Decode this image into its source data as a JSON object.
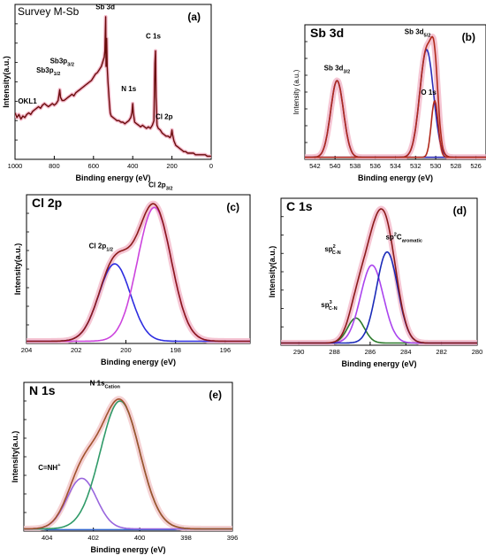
{
  "chart_data": [
    {
      "id": "a",
      "type": "line",
      "panel_letter": "(a)",
      "title": "Survey M-Sb",
      "xlabel": "Binding energy (eV)",
      "ylabel": "Intensity(a.u.)",
      "xlim": [
        1000,
        0
      ],
      "xticks": [
        1000,
        800,
        600,
        400,
        200,
        0
      ],
      "xtick_labels": [
        "1000",
        "800",
        "600",
        "400",
        "200",
        "0"
      ],
      "ylim": [
        0,
        1
      ],
      "show_y_ticklabels": false,
      "series": [
        {
          "color": "#6b0c0c",
          "envelope_color": "#f2b6c8",
          "points": [
            [
              1000,
              0.3
            ],
            [
              990,
              0.27
            ],
            [
              980,
              0.29
            ],
            [
              970,
              0.26
            ],
            [
              960,
              0.28
            ],
            [
              950,
              0.27
            ],
            [
              940,
              0.29
            ],
            [
              930,
              0.3
            ],
            [
              920,
              0.29
            ],
            [
              910,
              0.31
            ],
            [
              900,
              0.32
            ],
            [
              890,
              0.33
            ],
            [
              880,
              0.34
            ],
            [
              870,
              0.33
            ],
            [
              860,
              0.35
            ],
            [
              850,
              0.36
            ],
            [
              840,
              0.35
            ],
            [
              830,
              0.34
            ],
            [
              820,
              0.35
            ],
            [
              810,
              0.36
            ],
            [
              800,
              0.35
            ],
            [
              790,
              0.36
            ],
            [
              780,
              0.38
            ],
            [
              772,
              0.45
            ],
            [
              768,
              0.4
            ],
            [
              760,
              0.38
            ],
            [
              750,
              0.38
            ],
            [
              740,
              0.39
            ],
            [
              730,
              0.4
            ],
            [
              720,
              0.41
            ],
            [
              710,
              0.42
            ],
            [
              700,
              0.41
            ],
            [
              690,
              0.43
            ],
            [
              680,
              0.44
            ],
            [
              670,
              0.45
            ],
            [
              660,
              0.46
            ],
            [
              650,
              0.47
            ],
            [
              640,
              0.48
            ],
            [
              630,
              0.49
            ],
            [
              620,
              0.5
            ],
            [
              610,
              0.51
            ],
            [
              600,
              0.53
            ],
            [
              590,
              0.55
            ],
            [
              580,
              0.56
            ],
            [
              570,
              0.58
            ],
            [
              560,
              0.6
            ],
            [
              550,
              0.64
            ],
            [
              545,
              0.66
            ],
            [
              542,
              0.7
            ],
            [
              538,
              0.92
            ],
            [
              536,
              0.6
            ],
            [
              533,
              0.78
            ],
            [
              530,
              0.6
            ],
            [
              526,
              0.5
            ],
            [
              520,
              0.38
            ],
            [
              515,
              0.3
            ],
            [
              510,
              0.28
            ],
            [
              500,
              0.27
            ],
            [
              490,
              0.26
            ],
            [
              480,
              0.25
            ],
            [
              470,
              0.25
            ],
            [
              460,
              0.24
            ],
            [
              450,
              0.24
            ],
            [
              440,
              0.23
            ],
            [
              430,
              0.24
            ],
            [
              420,
              0.25
            ],
            [
              410,
              0.27
            ],
            [
              404,
              0.3
            ],
            [
              400,
              0.36
            ],
            [
              397,
              0.3
            ],
            [
              390,
              0.24
            ],
            [
              380,
              0.23
            ],
            [
              370,
              0.22
            ],
            [
              360,
              0.21
            ],
            [
              350,
              0.22
            ],
            [
              340,
              0.21
            ],
            [
              330,
              0.2
            ],
            [
              320,
              0.21
            ],
            [
              310,
              0.2
            ],
            [
              300,
              0.22
            ],
            [
              292,
              0.25
            ],
            [
              287,
              0.62
            ],
            [
              284,
              0.7
            ],
            [
              281,
              0.4
            ],
            [
              276,
              0.22
            ],
            [
              270,
              0.2
            ],
            [
              260,
              0.19
            ],
            [
              250,
              0.17
            ],
            [
              240,
              0.16
            ],
            [
              230,
              0.15
            ],
            [
              220,
              0.15
            ],
            [
              210,
              0.14
            ],
            [
              205,
              0.15
            ],
            [
              200,
              0.19
            ],
            [
              197,
              0.16
            ],
            [
              190,
              0.12
            ],
            [
              180,
              0.09
            ],
            [
              170,
              0.08
            ],
            [
              160,
              0.07
            ],
            [
              150,
              0.06
            ],
            [
              140,
              0.05
            ],
            [
              130,
              0.05
            ],
            [
              120,
              0.04
            ],
            [
              110,
              0.04
            ],
            [
              100,
              0.04
            ],
            [
              90,
              0.04
            ],
            [
              80,
              0.03
            ],
            [
              70,
              0.03
            ],
            [
              60,
              0.03
            ],
            [
              50,
              0.03
            ],
            [
              40,
              0.03
            ],
            [
              30,
              0.03
            ],
            [
              20,
              0.02
            ],
            [
              10,
              0.02
            ],
            [
              0,
              0.02
            ]
          ]
        }
      ],
      "annotations": [
        {
          "text": "OKL1",
          "x": 985,
          "y": 0.36
        },
        {
          "text": "Sb3p",
          "sub": "1/2",
          "x": 830,
          "y": 0.56
        },
        {
          "text": "Sb3p",
          "sub": "3/2",
          "x": 760,
          "y": 0.62
        },
        {
          "text": "Sb 3d",
          "x": 540,
          "y": 0.97
        },
        {
          "text": "N 1s",
          "x": 420,
          "y": 0.44
        },
        {
          "text": "C 1s",
          "x": 295,
          "y": 0.78
        },
        {
          "text": "Cl 2p",
          "x": 240,
          "y": 0.26
        }
      ]
    },
    {
      "id": "b",
      "type": "line",
      "panel_letter": "(b)",
      "title": "Sb 3d",
      "xlabel": "Binding energy (eV)",
      "ylabel": "Intensity (a.u.)",
      "xlim": [
        543,
        525
      ],
      "xticks": [
        542,
        540,
        538,
        536,
        534,
        532,
        530,
        528,
        526
      ],
      "xtick_labels": [
        "542",
        "540",
        "538",
        "536",
        "534",
        "532",
        "530",
        "528",
        "526"
      ],
      "ylim": [
        0,
        1
      ],
      "show_y_ticklabels": false,
      "components": [
        {
          "color": "#2d2db8",
          "center": 539.8,
          "fwhm": 1.5,
          "height": 0.57
        },
        {
          "color": "#2d2db8",
          "center": 530.9,
          "fwhm": 1.6,
          "height": 0.8
        },
        {
          "color": "#b02a1c",
          "center": 530.1,
          "fwhm": 0.8,
          "height": 0.42
        }
      ],
      "envelope": {
        "color": "#b02a1c",
        "glow": "#f2b6c8"
      },
      "annotations": [
        {
          "text": "Sb 3d",
          "sub": "3/2",
          "x": 539.8,
          "y": 0.66
        },
        {
          "text": "Sb 3d",
          "sub": "5/2",
          "x": 531.8,
          "y": 0.93
        },
        {
          "text": "O 1s",
          "x": 530.7,
          "y": 0.48
        }
      ]
    },
    {
      "id": "c",
      "type": "line",
      "panel_letter": "(c)",
      "title": "Cl 2p",
      "xlabel": "Binding energy (eV)",
      "ylabel": "Intensity(a.u.)",
      "xlim": [
        204,
        195
      ],
      "xticks": [
        204,
        202,
        200,
        198,
        196
      ],
      "xtick_labels": [
        "204",
        "202",
        "200",
        "198",
        "196"
      ],
      "ylim": [
        0,
        1
      ],
      "show_y_ticklabels": false,
      "components": [
        {
          "color": "#2d2de0",
          "center": 200.45,
          "fwhm": 1.5,
          "height": 0.52
        },
        {
          "color": "#cc44dd",
          "center": 198.85,
          "fwhm": 1.6,
          "height": 0.9
        }
      ],
      "envelope": {
        "color": "#8b1a1a",
        "glow": "#f2b6c8"
      },
      "annotations": [
        {
          "text": "Cl 2p",
          "sub": "3/2",
          "x": 198.6,
          "y": 1.05
        },
        {
          "text": "Cl 2p",
          "sub": "1/2",
          "x": 201.0,
          "y": 0.64
        }
      ]
    },
    {
      "id": "d",
      "type": "line",
      "panel_letter": "(d)",
      "title": "C 1s",
      "xlabel": "Binding energy (eV)",
      "ylabel": "Intensity(a.u.)",
      "xlim": [
        291,
        280
      ],
      "xticks": [
        290,
        288,
        286,
        284,
        282,
        280
      ],
      "xtick_labels": [
        "290",
        "288",
        "286",
        "284",
        "282",
        "280"
      ],
      "ylim": [
        0,
        1
      ],
      "show_y_ticklabels": false,
      "components": [
        {
          "color": "#2a7a2a",
          "center": 286.8,
          "fwhm": 1.1,
          "height": 0.17
        },
        {
          "color": "#aa44ee",
          "center": 285.9,
          "fwhm": 1.5,
          "height": 0.53
        },
        {
          "color": "#1a2ab8",
          "center": 285.05,
          "fwhm": 1.4,
          "height": 0.62
        }
      ],
      "envelope": {
        "color": "#8b1a1a",
        "glow": "#f2b6c8"
      },
      "annotations": [
        {
          "text": "sp",
          "sup": "2",
          "sub": "C-N",
          "x": 288.1,
          "y": 0.64
        },
        {
          "text": "sp",
          "sup": "2",
          "text2": "C",
          "sub": "aromatic",
          "x": 284.1,
          "y": 0.72
        },
        {
          "text": "sp",
          "sup": "3",
          "sub": "C-N",
          "x": 288.3,
          "y": 0.26
        }
      ]
    },
    {
      "id": "e",
      "type": "line",
      "panel_letter": "(e)",
      "title": "N 1s",
      "xlabel": "Binding energy (eV)",
      "ylabel": "Intensity(a.u.)",
      "xlim": [
        405,
        396
      ],
      "xticks": [
        404,
        402,
        400,
        398,
        396
      ],
      "xtick_labels": [
        "404",
        "402",
        "400",
        "398",
        "396"
      ],
      "ylim": [
        0,
        1
      ],
      "show_y_ticklabels": false,
      "components": [
        {
          "color": "#9966dd",
          "center": 402.5,
          "fwhm": 1.5,
          "height": 0.34
        },
        {
          "color": "#2f9a68",
          "center": 400.85,
          "fwhm": 2.0,
          "height": 0.86
        }
      ],
      "baseline": {
        "color": "#3366cc"
      },
      "envelope": {
        "color": "#a0522d",
        "glow": "#f2c6c8"
      },
      "annotations": [
        {
          "text": "N",
          "sub": "Cation",
          "text2": " 1s",
          "x": 401.5,
          "y": 0.98
        },
        {
          "text": "C=NH",
          "sup": "+",
          "x": 403.9,
          "y": 0.41
        }
      ]
    }
  ]
}
